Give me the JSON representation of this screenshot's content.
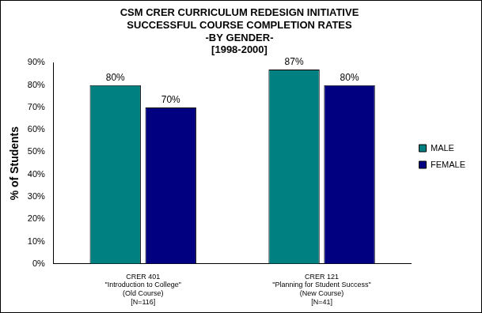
{
  "chart_data": {
    "type": "bar",
    "title": [
      "CSM CRER CURRICULUM REDESIGN INITIATIVE",
      "SUCCESSFUL COURSE COMPLETION RATES",
      "-BY GENDER-",
      "[1998-2000]"
    ],
    "y_label": "% of Students",
    "categories": [
      [
        "CRER 401",
        "\"Introduction to College\"",
        "(Old Course)",
        "[N=116]"
      ],
      [
        "CRER 121",
        "\"Planning for Student Success\"",
        "(New Course)",
        "[N=41]"
      ]
    ],
    "series": [
      {
        "name": "MALE",
        "color": "#008080",
        "values": [
          80,
          87
        ],
        "value_labels": [
          "80%",
          "87%"
        ]
      },
      {
        "name": "FEMALE",
        "color": "#000080",
        "values": [
          70,
          80
        ],
        "value_labels": [
          "70%",
          "80%"
        ]
      }
    ],
    "ylim": [
      0,
      90
    ],
    "yticks": [
      {
        "value": 0,
        "label": "0%"
      },
      {
        "value": 10,
        "label": "10%"
      },
      {
        "value": 20,
        "label": "20%"
      },
      {
        "value": 30,
        "label": "30%"
      },
      {
        "value": 40,
        "label": "40%"
      },
      {
        "value": 50,
        "label": "50%"
      },
      {
        "value": 60,
        "label": "60%"
      },
      {
        "value": 70,
        "label": "70%"
      },
      {
        "value": 80,
        "label": "80%"
      },
      {
        "value": 90,
        "label": "90%"
      }
    ],
    "grid": false,
    "legend": "right",
    "data_labels": true
  }
}
